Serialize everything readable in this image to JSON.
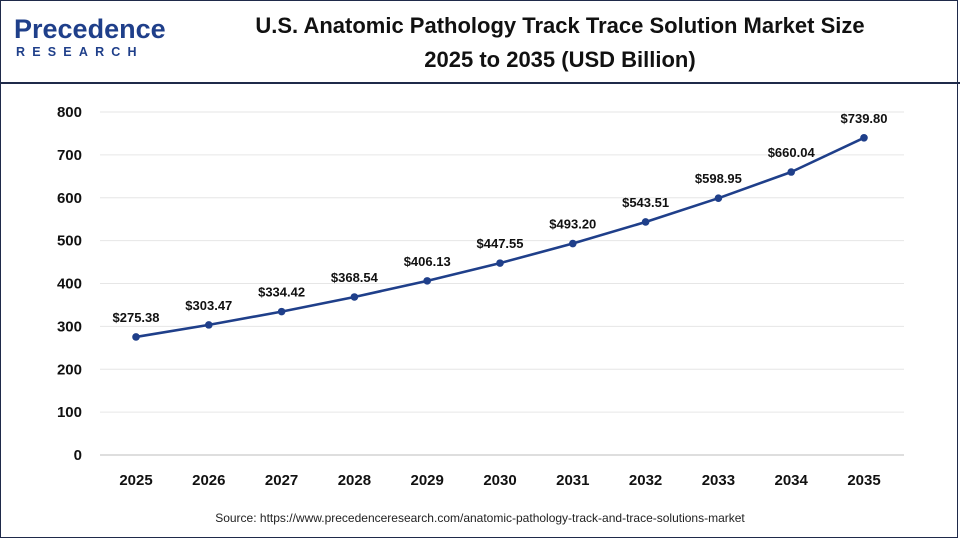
{
  "brand": {
    "name_prefix": "P",
    "name_rest": "recedence",
    "name_sub": "RESEARCH",
    "color": "#1f3f8a"
  },
  "header": {
    "title_line1": "U.S. Anatomic Pathology Track Trace Solution Market Size",
    "title_line2": "2025 to 2035 (USD Billion)"
  },
  "footer": {
    "source": "Source: https://www.precedenceresearch.com/anatomic-pathology-track-and-trace-solutions-market"
  },
  "chart_data": {
    "type": "line",
    "categories": [
      "2025",
      "2026",
      "2027",
      "2028",
      "2029",
      "2030",
      "2031",
      "2032",
      "2033",
      "2034",
      "2035"
    ],
    "series": [
      {
        "values": [
          275.38,
          303.47,
          334.42,
          368.54,
          406.13,
          447.55,
          493.2,
          543.51,
          598.95,
          660.04,
          739.8
        ],
        "labels": [
          "$275.38",
          "$303.47",
          "$334.42",
          "$368.54",
          "$406.13",
          "$447.55",
          "$493.20",
          "$543.51",
          "$598.95",
          "$660.04",
          "$739.80"
        ],
        "color": "#1f3f8a"
      }
    ],
    "title": "U.S. Anatomic Pathology Track Trace Solution Market Size 2025 to 2035 (USD Billion)",
    "xlabel": "",
    "ylabel": "",
    "ylim": [
      0,
      800
    ],
    "yticks": [
      0,
      100,
      200,
      300,
      400,
      500,
      600,
      700,
      800
    ],
    "grid": true,
    "legend": "none"
  }
}
